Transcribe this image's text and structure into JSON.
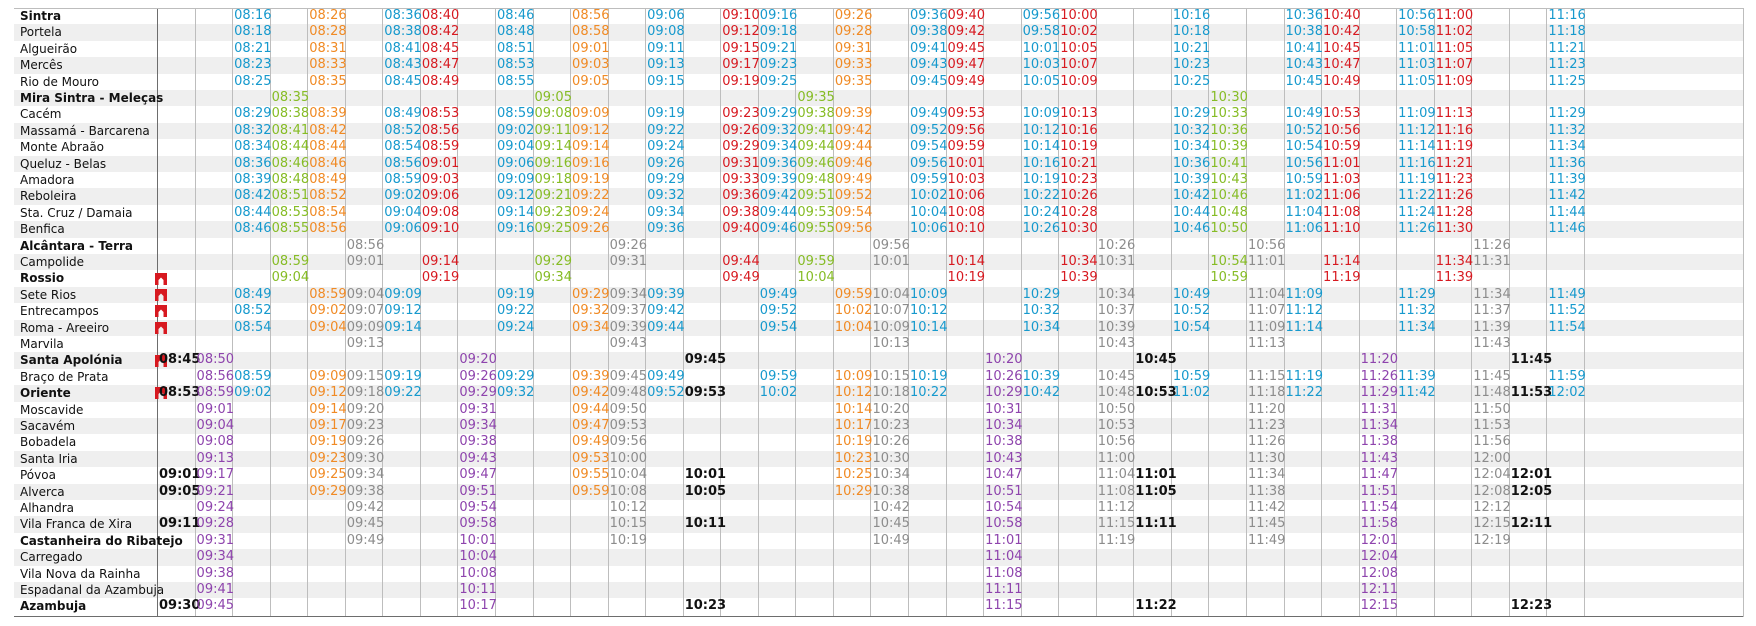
{
  "colors": {
    "cyan": "#1699cd",
    "green": "#86bc25",
    "orange": "#f08a24",
    "red": "#d71920",
    "gray": "#8c8c8c",
    "purple": "#8e44ad",
    "black": "#111111"
  },
  "stations": [
    {
      "name": "Sintra",
      "bold": true
    },
    {
      "name": "Portela",
      "bold": false
    },
    {
      "name": "Algueirão",
      "bold": false
    },
    {
      "name": "Mercês",
      "bold": false
    },
    {
      "name": "Rio de Mouro",
      "bold": false
    },
    {
      "name": "Mira Sintra - Meleças",
      "bold": true
    },
    {
      "name": "Cacém",
      "bold": false
    },
    {
      "name": "Massamá - Barcarena",
      "bold": false
    },
    {
      "name": "Monte Abraão",
      "bold": false
    },
    {
      "name": "Queluz - Belas",
      "bold": false
    },
    {
      "name": "Amadora",
      "bold": false
    },
    {
      "name": "Reboleira",
      "bold": false
    },
    {
      "name": "Sta. Cruz / Damaia",
      "bold": false
    },
    {
      "name": "Benfica",
      "bold": false
    },
    {
      "name": "Alcântara - Terra",
      "bold": true
    },
    {
      "name": "Campolide",
      "bold": false
    },
    {
      "name": "Rossio",
      "bold": true,
      "metro": true
    },
    {
      "name": "Sete Rios",
      "bold": false,
      "metro": true
    },
    {
      "name": "Entrecampos",
      "bold": false,
      "metro": true
    },
    {
      "name": "Roma - Areeiro",
      "bold": false,
      "metro": true
    },
    {
      "name": "Marvila",
      "bold": false
    },
    {
      "name": "Santa Apolónia",
      "bold": true,
      "metro": true
    },
    {
      "name": "Braço de Prata",
      "bold": false
    },
    {
      "name": "Oriente",
      "bold": true,
      "metro": true
    },
    {
      "name": "Moscavide",
      "bold": false
    },
    {
      "name": "Sacavém",
      "bold": false
    },
    {
      "name": "Bobadela",
      "bold": false
    },
    {
      "name": "Santa Iria",
      "bold": false
    },
    {
      "name": "Póvoa",
      "bold": false
    },
    {
      "name": "Alverca",
      "bold": false
    },
    {
      "name": "Alhandra",
      "bold": false
    },
    {
      "name": "Vila Franca de Xira",
      "bold": false
    },
    {
      "name": "Castanheira do Ribatejo",
      "bold": true
    },
    {
      "name": "Carregado",
      "bold": false
    },
    {
      "name": "Vila Nova da Rainha",
      "bold": false
    },
    {
      "name": "Espadanal da Azambuja",
      "bold": false
    },
    {
      "name": "Azambuja",
      "bold": true
    }
  ],
  "columns": [
    {
      "c": "black",
      "b": true,
      "t": {
        "21": "08:45",
        "23": "08:53",
        "28": "09:01",
        "29": "09:05",
        "31": "09:11",
        "36": "09:30"
      }
    },
    {
      "c": "purple",
      "t": {
        "21": "08:50",
        "22": "08:56",
        "23": "08:59",
        "24": "09:01",
        "25": "09:04",
        "26": "09:08",
        "27": "09:13",
        "28": "09:17",
        "29": "09:21",
        "30": "09:24",
        "31": "09:28",
        "32": "09:31",
        "33": "09:34",
        "34": "09:38",
        "35": "09:41",
        "36": "09:45"
      }
    },
    {
      "c": "cyan",
      "t": {
        "0": "08:16",
        "1": "08:18",
        "2": "08:21",
        "3": "08:23",
        "4": "08:25",
        "6": "08:29",
        "7": "08:32",
        "8": "08:34",
        "9": "08:36",
        "10": "08:39",
        "11": "08:42",
        "12": "08:44",
        "13": "08:46",
        "17": "08:49",
        "18": "08:52",
        "19": "08:54",
        "22": "08:59",
        "23": "09:02"
      }
    },
    {
      "c": "green",
      "t": {
        "5": "08:35",
        "6": "08:38",
        "7": "08:41",
        "8": "08:44",
        "9": "08:46",
        "10": "08:48",
        "11": "08:51",
        "12": "08:53",
        "13": "08:55",
        "15": "08:59",
        "16": "09:04"
      }
    },
    {
      "c": "orange",
      "t": {
        "0": "08:26",
        "1": "08:28",
        "2": "08:31",
        "3": "08:33",
        "4": "08:35",
        "6": "08:39",
        "7": "08:42",
        "8": "08:44",
        "9": "08:46",
        "10": "08:49",
        "11": "08:52",
        "12": "08:54",
        "13": "08:56",
        "17": "08:59",
        "18": "09:02",
        "19": "09:04",
        "22": "09:09",
        "23": "09:12",
        "24": "09:14",
        "25": "09:17",
        "26": "09:19",
        "27": "09:23",
        "28": "09:25",
        "29": "09:29"
      }
    },
    {
      "c": "gray",
      "t": {
        "14": "08:56",
        "15": "09:01",
        "17": "09:04",
        "18": "09:07",
        "19": "09:09",
        "20": "09:13",
        "22": "09:15",
        "23": "09:18",
        "24": "09:20",
        "25": "09:23",
        "26": "09:26",
        "27": "09:30",
        "28": "09:34",
        "29": "09:38",
        "30": "09:42",
        "31": "09:45",
        "32": "09:49"
      }
    },
    {
      "c": "cyan",
      "t": {
        "0": "08:36",
        "1": "08:38",
        "2": "08:41",
        "3": "08:43",
        "4": "08:45",
        "6": "08:49",
        "7": "08:52",
        "8": "08:54",
        "9": "08:56",
        "10": "08:59",
        "11": "09:02",
        "12": "09:04",
        "13": "09:06",
        "17": "09:09",
        "18": "09:12",
        "19": "09:14",
        "22": "09:19",
        "23": "09:22"
      }
    },
    {
      "c": "red",
      "t": {
        "0": "08:40",
        "1": "08:42",
        "2": "08:45",
        "3": "08:47",
        "4": "08:49",
        "6": "08:53",
        "7": "08:56",
        "8": "08:59",
        "9": "09:01",
        "10": "09:03",
        "11": "09:06",
        "12": "09:08",
        "13": "09:10",
        "15": "09:14",
        "16": "09:19"
      }
    },
    {
      "c": "purple",
      "t": {
        "21": "09:20",
        "22": "09:26",
        "23": "09:29",
        "24": "09:31",
        "25": "09:34",
        "26": "09:38",
        "27": "09:43",
        "28": "09:47",
        "29": "09:51",
        "30": "09:54",
        "31": "09:58",
        "32": "10:01",
        "33": "10:04",
        "34": "10:08",
        "35": "10:11",
        "36": "10:17"
      }
    },
    {
      "c": "cyan",
      "t": {
        "0": "08:46",
        "1": "08:48",
        "2": "08:51",
        "3": "08:53",
        "4": "08:55",
        "6": "08:59",
        "7": "09:02",
        "8": "09:04",
        "9": "09:06",
        "10": "09:09",
        "11": "09:12",
        "12": "09:14",
        "13": "09:16",
        "17": "09:19",
        "18": "09:22",
        "19": "09:24",
        "22": "09:29",
        "23": "09:32"
      }
    },
    {
      "c": "green",
      "t": {
        "5": "09:05",
        "6": "09:08",
        "7": "09:11",
        "8": "09:14",
        "9": "09:16",
        "10": "09:18",
        "11": "09:21",
        "12": "09:23",
        "13": "09:25",
        "15": "09:29",
        "16": "09:34"
      }
    },
    {
      "c": "orange",
      "t": {
        "0": "08:56",
        "1": "08:58",
        "2": "09:01",
        "3": "09:03",
        "4": "09:05",
        "6": "09:09",
        "7": "09:12",
        "8": "09:14",
        "9": "09:16",
        "10": "09:19",
        "11": "09:22",
        "12": "09:24",
        "13": "09:26",
        "17": "09:29",
        "18": "09:32",
        "19": "09:34",
        "22": "09:39",
        "23": "09:42",
        "24": "09:44",
        "25": "09:47",
        "26": "09:49",
        "27": "09:53",
        "28": "09:55",
        "29": "09:59"
      }
    },
    {
      "c": "gray",
      "t": {
        "14": "09:26",
        "15": "09:31",
        "17": "09:34",
        "18": "09:37",
        "19": "09:39",
        "20": "09:43",
        "22": "09:45",
        "23": "09:48",
        "24": "09:50",
        "25": "09:53",
        "26": "09:56",
        "27": "10:00",
        "28": "10:04",
        "29": "10:08",
        "30": "10:12",
        "31": "10:15",
        "32": "10:19"
      }
    },
    {
      "c": "cyan",
      "t": {
        "0": "09:06",
        "1": "09:08",
        "2": "09:11",
        "3": "09:13",
        "4": "09:15",
        "6": "09:19",
        "7": "09:22",
        "8": "09:24",
        "9": "09:26",
        "10": "09:29",
        "11": "09:32",
        "12": "09:34",
        "13": "09:36",
        "17": "09:39",
        "18": "09:42",
        "19": "09:44",
        "22": "09:49",
        "23": "09:52"
      }
    },
    {
      "c": "black",
      "b": true,
      "t": {
        "21": "09:45",
        "23": "09:53",
        "28": "10:01",
        "29": "10:05",
        "31": "10:11",
        "36": "10:23"
      }
    },
    {
      "c": "red",
      "t": {
        "0": "09:10",
        "1": "09:12",
        "2": "09:15",
        "3": "09:17",
        "4": "09:19",
        "6": "09:23",
        "7": "09:26",
        "8": "09:29",
        "9": "09:31",
        "10": "09:33",
        "11": "09:36",
        "12": "09:38",
        "13": "09:40",
        "15": "09:44",
        "16": "09:49"
      }
    },
    {
      "c": "cyan",
      "t": {
        "0": "09:16",
        "1": "09:18",
        "2": "09:21",
        "3": "09:23",
        "4": "09:25",
        "6": "09:29",
        "7": "09:32",
        "8": "09:34",
        "9": "09:36",
        "10": "09:39",
        "11": "09:42",
        "12": "09:44",
        "13": "09:46",
        "17": "09:49",
        "18": "09:52",
        "19": "09:54",
        "22": "09:59",
        "23": "10:02"
      }
    },
    {
      "c": "green",
      "t": {
        "5": "09:35",
        "6": "09:38",
        "7": "09:41",
        "8": "09:44",
        "9": "09:46",
        "10": "09:48",
        "11": "09:51",
        "12": "09:53",
        "13": "09:55",
        "15": "09:59",
        "16": "10:04"
      }
    },
    {
      "c": "orange",
      "t": {
        "0": "09:26",
        "1": "09:28",
        "2": "09:31",
        "3": "09:33",
        "4": "09:35",
        "6": "09:39",
        "7": "09:42",
        "8": "09:44",
        "9": "09:46",
        "10": "09:49",
        "11": "09:52",
        "12": "09:54",
        "13": "09:56",
        "17": "09:59",
        "18": "10:02",
        "19": "10:04",
        "22": "10:09",
        "23": "10:12",
        "24": "10:14",
        "25": "10:17",
        "26": "10:19",
        "27": "10:23",
        "28": "10:25",
        "29": "10:29"
      }
    },
    {
      "c": "gray",
      "t": {
        "14": "09:56",
        "15": "10:01",
        "17": "10:04",
        "18": "10:07",
        "19": "10:09",
        "20": "10:13",
        "22": "10:15",
        "23": "10:18",
        "24": "10:20",
        "25": "10:23",
        "26": "10:26",
        "27": "10:30",
        "28": "10:34",
        "29": "10:38",
        "30": "10:42",
        "31": "10:45",
        "32": "10:49"
      }
    },
    {
      "c": "cyan",
      "t": {
        "0": "09:36",
        "1": "09:38",
        "2": "09:41",
        "3": "09:43",
        "4": "09:45",
        "6": "09:49",
        "7": "09:52",
        "8": "09:54",
        "9": "09:56",
        "10": "09:59",
        "11": "10:02",
        "12": "10:04",
        "13": "10:06",
        "17": "10:09",
        "18": "10:12",
        "19": "10:14",
        "22": "10:19",
        "23": "10:22"
      }
    },
    {
      "c": "red",
      "t": {
        "0": "09:40",
        "1": "09:42",
        "2": "09:45",
        "3": "09:47",
        "4": "09:49",
        "6": "09:53",
        "7": "09:56",
        "8": "09:59",
        "9": "10:01",
        "10": "10:03",
        "11": "10:06",
        "12": "10:08",
        "13": "10:10",
        "15": "10:14",
        "16": "10:19"
      }
    },
    {
      "c": "purple",
      "t": {
        "21": "10:20",
        "22": "10:26",
        "23": "10:29",
        "24": "10:31",
        "25": "10:34",
        "26": "10:38",
        "27": "10:43",
        "28": "10:47",
        "29": "10:51",
        "30": "10:54",
        "31": "10:58",
        "32": "11:01",
        "33": "11:04",
        "34": "11:08",
        "35": "11:11",
        "36": "11:15"
      }
    },
    {
      "c": "cyan",
      "t": {
        "0": "09:56",
        "1": "09:58",
        "2": "10:01",
        "3": "10:03",
        "4": "10:05",
        "6": "10:09",
        "7": "10:12",
        "8": "10:14",
        "9": "10:16",
        "10": "10:19",
        "11": "10:22",
        "12": "10:24",
        "13": "10:26",
        "17": "10:29",
        "18": "10:32",
        "19": "10:34",
        "22": "10:39",
        "23": "10:42"
      }
    },
    {
      "c": "red",
      "t": {
        "0": "10:00",
        "1": "10:02",
        "2": "10:05",
        "3": "10:07",
        "4": "10:09",
        "6": "10:13",
        "7": "10:16",
        "8": "10:19",
        "9": "10:21",
        "10": "10:23",
        "11": "10:26",
        "12": "10:28",
        "13": "10:30",
        "15": "10:34",
        "16": "10:39"
      }
    },
    {
      "c": "gray",
      "t": {
        "14": "10:26",
        "15": "10:31",
        "17": "10:34",
        "18": "10:37",
        "19": "10:39",
        "20": "10:43",
        "22": "10:45",
        "23": "10:48",
        "24": "10:50",
        "25": "10:53",
        "26": "10:56",
        "27": "11:00",
        "28": "11:04",
        "29": "11:08",
        "30": "11:12",
        "31": "11:15",
        "32": "11:19"
      }
    },
    {
      "c": "black",
      "b": true,
      "t": {
        "21": "10:45",
        "23": "10:53",
        "28": "11:01",
        "29": "11:05",
        "31": "11:11",
        "36": "11:22"
      }
    },
    {
      "c": "cyan",
      "t": {
        "0": "10:16",
        "1": "10:18",
        "2": "10:21",
        "3": "10:23",
        "4": "10:25",
        "6": "10:29",
        "7": "10:32",
        "8": "10:34",
        "9": "10:36",
        "10": "10:39",
        "11": "10:42",
        "12": "10:44",
        "13": "10:46",
        "17": "10:49",
        "18": "10:52",
        "19": "10:54",
        "22": "10:59",
        "23": "11:02"
      }
    },
    {
      "c": "green",
      "t": {
        "5": "10:30",
        "6": "10:33",
        "7": "10:36",
        "8": "10:39",
        "9": "10:41",
        "10": "10:43",
        "11": "10:46",
        "12": "10:48",
        "13": "10:50",
        "15": "10:54",
        "16": "10:59"
      }
    },
    {
      "c": "gray",
      "t": {
        "14": "10:56",
        "15": "11:01",
        "17": "11:04",
        "18": "11:07",
        "19": "11:09",
        "20": "11:13",
        "22": "11:15",
        "23": "11:18",
        "24": "11:20",
        "25": "11:23",
        "26": "11:26",
        "27": "11:30",
        "28": "11:34",
        "29": "11:38",
        "30": "11:42",
        "31": "11:45",
        "32": "11:49"
      }
    },
    {
      "c": "cyan",
      "t": {
        "0": "10:36",
        "1": "10:38",
        "2": "10:41",
        "3": "10:43",
        "4": "10:45",
        "6": "10:49",
        "7": "10:52",
        "8": "10:54",
        "9": "10:56",
        "10": "10:59",
        "11": "11:02",
        "12": "11:04",
        "13": "11:06",
        "17": "11:09",
        "18": "11:12",
        "19": "11:14",
        "22": "11:19",
        "23": "11:22"
      }
    },
    {
      "c": "red",
      "t": {
        "0": "10:40",
        "1": "10:42",
        "2": "10:45",
        "3": "10:47",
        "4": "10:49",
        "6": "10:53",
        "7": "10:56",
        "8": "10:59",
        "9": "11:01",
        "10": "11:03",
        "11": "11:06",
        "12": "11:08",
        "13": "11:10",
        "15": "11:14",
        "16": "11:19"
      }
    },
    {
      "c": "purple",
      "t": {
        "21": "11:20",
        "22": "11:26",
        "23": "11:29",
        "24": "11:31",
        "25": "11:34",
        "26": "11:38",
        "27": "11:43",
        "28": "11:47",
        "29": "11:51",
        "30": "11:54",
        "31": "11:58",
        "32": "12:01",
        "33": "12:04",
        "34": "12:08",
        "35": "12:11",
        "36": "12:15"
      }
    },
    {
      "c": "cyan",
      "t": {
        "0": "10:56",
        "1": "10:58",
        "2": "11:01",
        "3": "11:03",
        "4": "11:05",
        "6": "11:09",
        "7": "11:12",
        "8": "11:14",
        "9": "11:16",
        "10": "11:19",
        "11": "11:22",
        "12": "11:24",
        "13": "11:26",
        "17": "11:29",
        "18": "11:32",
        "19": "11:34",
        "22": "11:39",
        "23": "11:42"
      }
    },
    {
      "c": "red",
      "t": {
        "0": "11:00",
        "1": "11:02",
        "2": "11:05",
        "3": "11:07",
        "4": "11:09",
        "6": "11:13",
        "7": "11:16",
        "8": "11:19",
        "9": "11:21",
        "10": "11:23",
        "11": "11:26",
        "12": "11:28",
        "13": "11:30",
        "15": "11:34",
        "16": "11:39"
      }
    },
    {
      "c": "gray",
      "t": {
        "14": "11:26",
        "15": "11:31",
        "17": "11:34",
        "18": "11:37",
        "19": "11:39",
        "20": "11:43",
        "22": "11:45",
        "23": "11:48",
        "24": "11:50",
        "25": "11:53",
        "26": "11:56",
        "27": "12:00",
        "28": "12:04",
        "29": "12:08",
        "30": "12:12",
        "31": "12:15",
        "32": "12:19"
      }
    },
    {
      "c": "black",
      "b": true,
      "t": {
        "21": "11:45",
        "23": "11:53",
        "28": "12:01",
        "29": "12:05",
        "31": "12:11",
        "36": "12:23"
      }
    },
    {
      "c": "cyan",
      "t": {
        "0": "11:16",
        "1": "11:18",
        "2": "11:21",
        "3": "11:23",
        "4": "11:25",
        "6": "11:29",
        "7": "11:32",
        "8": "11:34",
        "9": "11:36",
        "10": "11:39",
        "11": "11:42",
        "12": "11:44",
        "13": "11:46",
        "17": "11:49",
        "18": "11:52",
        "19": "11:54",
        "22": "11:59",
        "23": "12:02"
      }
    }
  ]
}
